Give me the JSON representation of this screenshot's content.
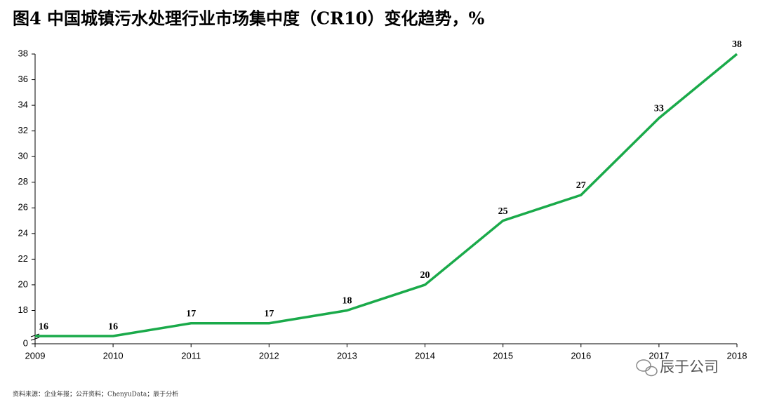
{
  "chart_data": {
    "type": "line",
    "title": "图4 中国城镇污水处理行业市场集中度（CR10）变化趋势，%",
    "categories": [
      "2009",
      "2010",
      "2011",
      "2012",
      "2013",
      "2014",
      "2015",
      "2016",
      "2017",
      "2018"
    ],
    "values": [
      16,
      16,
      17,
      17,
      18,
      20,
      25,
      27,
      33,
      38
    ],
    "color": "#1aaa4a",
    "ylim": [
      0,
      38
    ],
    "axis_break": [
      0,
      15.4
    ],
    "yticks": [
      0,
      18,
      20,
      22,
      24,
      26,
      28,
      30,
      32,
      34,
      36,
      38
    ],
    "source": "资料来源：企业年报；公开资料；ChenyuData；辰于分析",
    "watermark": "辰于公司"
  }
}
